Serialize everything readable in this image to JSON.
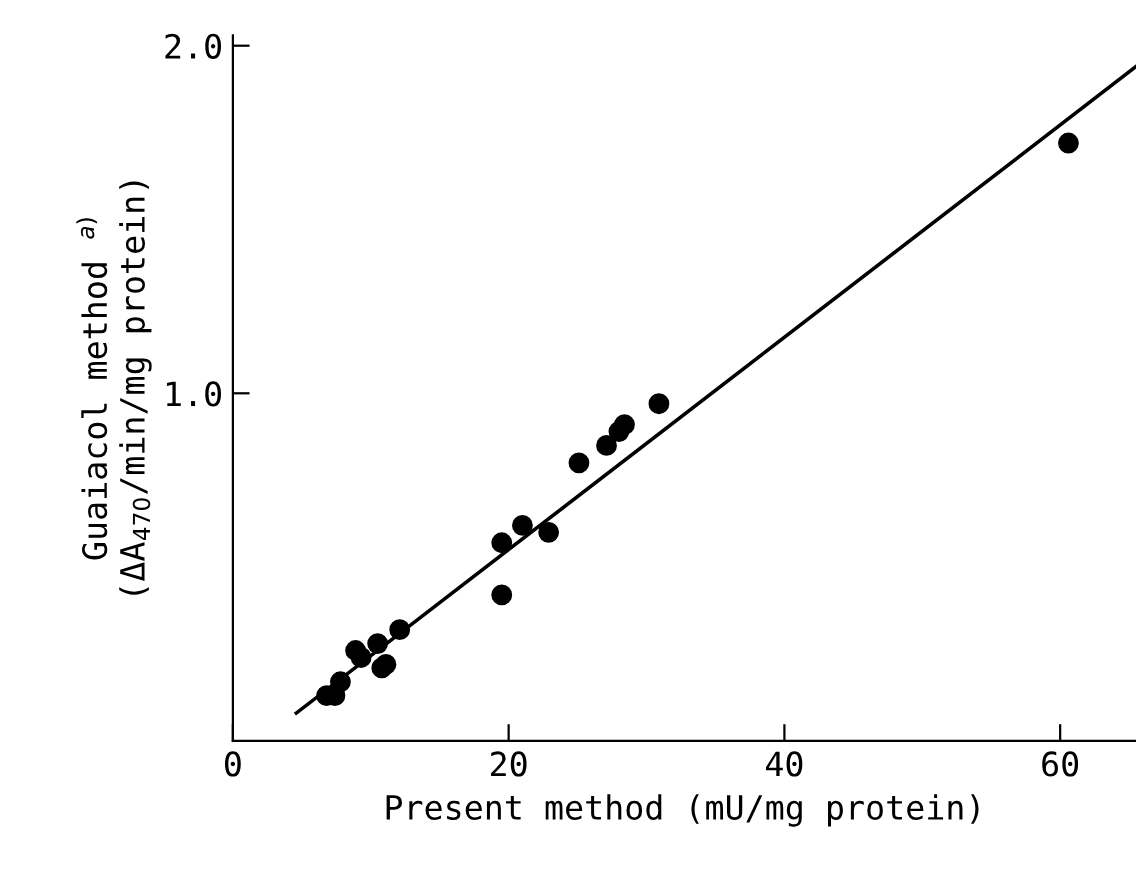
{
  "chart_data": {
    "type": "scatter",
    "xlabel": "Present method (mU/mg protein)",
    "ylabel": "Guaiacol method $^{a)}$\n(ΔA$_{470}$/min/mg protein)",
    "xlim": [
      0,
      65.5
    ],
    "ylim": [
      0,
      2.03
    ],
    "xticks": [
      0,
      20,
      40,
      60
    ],
    "yticks": [
      {
        "value": 1,
        "label": "1.0"
      },
      {
        "value": 2,
        "label": "2.0"
      }
    ],
    "marker": "circle",
    "grid": false,
    "series": [
      {
        "color": "#000000",
        "x": [
          6.8,
          7.4,
          7.8,
          8.9,
          9.3,
          10.5,
          10.8,
          11.1,
          12.1,
          19.5,
          19.5,
          21.0,
          22.9,
          25.1,
          27.1,
          28.0,
          28.4,
          30.9,
          60.6
        ],
        "values": [
          0.13,
          0.13,
          0.17,
          0.26,
          0.24,
          0.28,
          0.21,
          0.22,
          0.32,
          0.57,
          0.42,
          0.62,
          0.6,
          0.8,
          0.85,
          0.89,
          0.91,
          0.97,
          1.72
        ]
      },
      {
        "type": "line",
        "color": "#000000",
        "marker": "none",
        "line_style": "solid",
        "x": [
          4.6,
          65.5
        ],
        "values": [
          0.08,
          1.94
        ]
      }
    ]
  }
}
